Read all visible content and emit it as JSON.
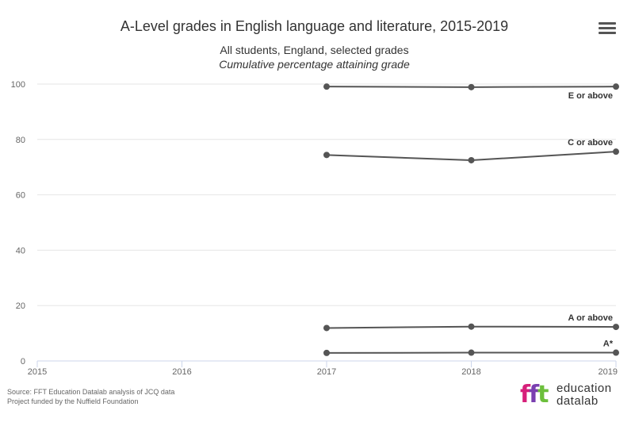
{
  "title": "A-Level grades in English language and literature, 2015-2019",
  "subtitle_line1": "All students, England, selected grades",
  "subtitle_line2": "Cumulative percentage attaining grade",
  "credits": {
    "line1": "Source: FFT Education Datalab analysis of JCQ data",
    "line2": "Project funded by the Nuffield Foundation"
  },
  "logo": {
    "mark": "fft",
    "word1": "education",
    "word2": "datalab"
  },
  "menu_icon": "hamburger-menu-icon",
  "chart_data": {
    "type": "line",
    "x": [
      2015,
      2016,
      2017,
      2018,
      2019
    ],
    "xlim": [
      2015,
      2019
    ],
    "ylim": [
      0,
      100
    ],
    "y_ticks": [
      0,
      20,
      40,
      60,
      80,
      100
    ],
    "grid": true,
    "legend": "none",
    "line_color": "#555555",
    "series": [
      {
        "name": "E or above",
        "x": [
          2017,
          2018,
          2019
        ],
        "values": [
          99.1,
          98.9,
          99.1
        ]
      },
      {
        "name": "C or above",
        "x": [
          2017,
          2018,
          2019
        ],
        "values": [
          74.4,
          72.5,
          75.6
        ]
      },
      {
        "name": "A or above",
        "x": [
          2017,
          2018,
          2019
        ],
        "values": [
          11.9,
          12.4,
          12.3
        ]
      },
      {
        "name": "A*",
        "x": [
          2017,
          2018,
          2019
        ],
        "values": [
          2.9,
          3.0,
          3.0
        ]
      }
    ]
  }
}
